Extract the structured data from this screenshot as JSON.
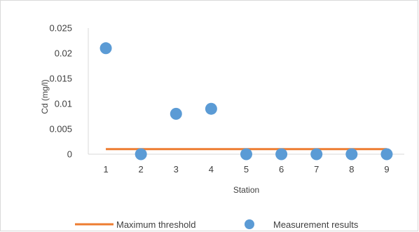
{
  "chart_data": {
    "type": "scatter",
    "xlabel": "Station",
    "ylabel": "Cd (mg/l)",
    "x_ticks": [
      "1",
      "2",
      "3",
      "4",
      "5",
      "6",
      "7",
      "8",
      "9"
    ],
    "y_ticks": [
      "0",
      "0.005",
      "0.01",
      "0.015",
      "0.02",
      "0.025"
    ],
    "xlim": [
      0.5,
      9.5
    ],
    "ylim": [
      0,
      0.025
    ],
    "grid": false,
    "legend_position": "bottom",
    "series": [
      {
        "name": "Maximum threshold",
        "kind": "line",
        "color": "#ed7d31",
        "x": [
          1,
          2,
          3,
          4,
          5,
          6,
          7,
          8,
          9
        ],
        "y": [
          0.001,
          0.001,
          0.001,
          0.001,
          0.001,
          0.001,
          0.001,
          0.001,
          0.001
        ]
      },
      {
        "name": "Measurement results",
        "kind": "scatter",
        "color": "#5b9bd5",
        "x": [
          1,
          2,
          3,
          4,
          5,
          6,
          7,
          8,
          9
        ],
        "y": [
          0.021,
          0,
          0.008,
          0.009,
          0,
          0,
          0,
          0,
          0
        ]
      }
    ]
  }
}
